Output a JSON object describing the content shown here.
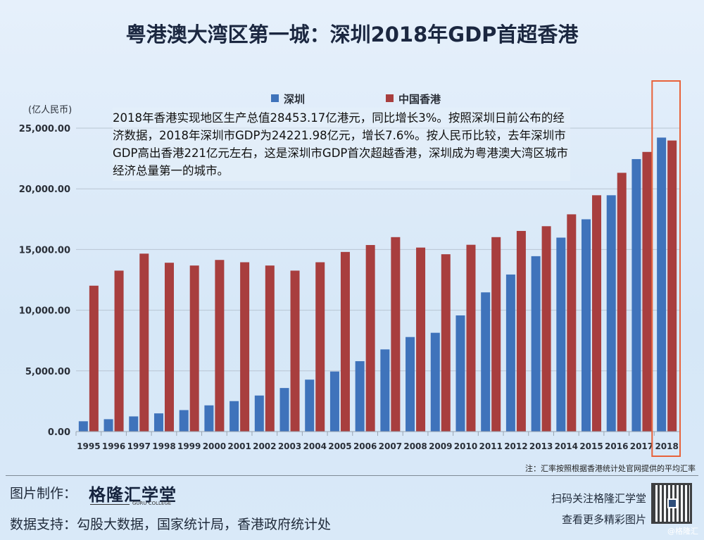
{
  "chart_data": {
    "type": "bar",
    "title": "粤港澳大湾区第一城：深圳2018年GDP首超香港",
    "ylabel": "(亿人民币)",
    "xlabel": "",
    "ylim": [
      0,
      25000
    ],
    "yticks": [
      "0.00",
      "5,000.00",
      "10,000.00",
      "15,000.00",
      "20,000.00",
      "25,000.00"
    ],
    "grid": true,
    "legend_position": "top",
    "categories": [
      "1995",
      "1996",
      "1997",
      "1998",
      "1999",
      "2000",
      "2001",
      "2002",
      "2003",
      "2004",
      "2005",
      "2006",
      "2007",
      "2008",
      "2009",
      "2010",
      "2011",
      "2012",
      "2013",
      "2014",
      "2015",
      "2016",
      "2017",
      "2018"
    ],
    "series": [
      {
        "name": "深圳",
        "color": "#3f73bb",
        "values": [
          850,
          1020,
          1250,
          1500,
          1770,
          2160,
          2510,
          2970,
          3590,
          4280,
          4950,
          5800,
          6770,
          7790,
          8140,
          9570,
          11470,
          12940,
          14450,
          15980,
          17490,
          19470,
          22450,
          24222
        ]
      },
      {
        "name": "中国香港",
        "color": "#a83e3e",
        "values": [
          12020,
          13260,
          14660,
          13910,
          13680,
          14140,
          13950,
          13680,
          13260,
          13950,
          14800,
          15370,
          16020,
          15160,
          14610,
          15390,
          16020,
          16530,
          16920,
          17900,
          19470,
          21320,
          23040,
          23980
        ]
      }
    ],
    "highlight": {
      "category": "2018",
      "color": "#e8623a"
    },
    "annotation": "2018年香港实现地区生产总值28453.17亿港元，同比增长3%。按照深圳日前公布的经济数据，2018年深圳市GDP为24221.98亿元，增长7.6%。按人民币比较，去年深圳市GDP高出香港221亿元左右，这是深圳市GDP首次超越香港，深圳成为粤港澳大湾区城市经济总量第一的城市。"
  },
  "footer": {
    "note": "注：汇率按照根据香港统计处官网提供的平均汇率",
    "made_by_label": "图片制作：",
    "logo": "格隆汇学堂",
    "logo_sub": "GURU COLLEGE",
    "data_label": "数据支持：勾股大数据，国家统计局，香港政府统计处",
    "qr_line1": "扫码关注格隆汇学堂",
    "qr_line2": "查看更多精彩图片",
    "watermark": "@格隆汇"
  }
}
